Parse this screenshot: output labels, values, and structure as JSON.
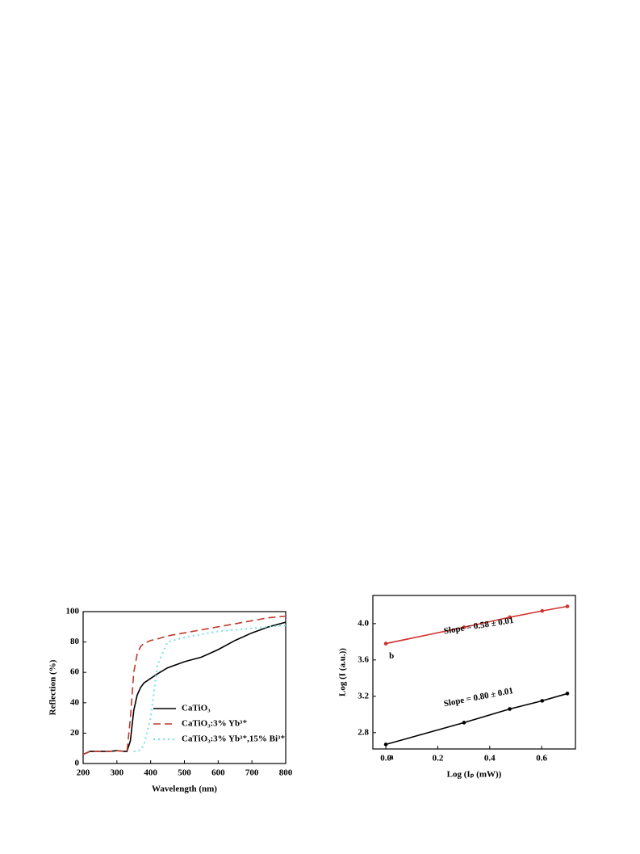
{
  "chart_data": [
    {
      "type": "line",
      "x_label": "Wavelength (nm)",
      "y_label": "Reflection (%)",
      "x": [
        200,
        220,
        250,
        280,
        300,
        320,
        330,
        340,
        350,
        360,
        370,
        380,
        400,
        420,
        450,
        500,
        550,
        600,
        650,
        700,
        750,
        800
      ],
      "series": [
        {
          "name": "CaTiO₃",
          "color": "#000000",
          "dash": "solid",
          "values": [
            6,
            8,
            8,
            8,
            8.5,
            8,
            8,
            15,
            35,
            45,
            50,
            53,
            56,
            59,
            63,
            67,
            70,
            75,
            81,
            86,
            90,
            93
          ]
        },
        {
          "name": "CaTiO₃:3% Yb³⁺",
          "color": "#c0392b",
          "dash": "dashed",
          "values": [
            6,
            8,
            8,
            8,
            8.5,
            8,
            8,
            30,
            60,
            72,
            77,
            79,
            81,
            82,
            84,
            86,
            88,
            90,
            92,
            94,
            96,
            97
          ]
        },
        {
          "name": "CaTiO₃:3% Yb³⁺,15% Bi³⁺",
          "color": "#7fe3e3",
          "dash": "dotted",
          "values": [
            null,
            null,
            null,
            null,
            null,
            null,
            null,
            null,
            8,
            8,
            9,
            12,
            30,
            65,
            80,
            83,
            85,
            87,
            88,
            89,
            90,
            91
          ]
        }
      ],
      "xlim": [
        200,
        800
      ],
      "xticks": [
        200,
        300,
        400,
        500,
        600,
        700,
        800
      ],
      "ylim": [
        0,
        100
      ],
      "yticks": [
        0,
        20,
        40,
        60,
        80,
        100
      ],
      "legend": "lower-right"
    },
    {
      "type": "line",
      "markers": true,
      "x_label": "Log (Iₚ (mW))",
      "y_label": "Log (I (a.u.))",
      "x": [
        0,
        0.301,
        0.477,
        0.602,
        0.699
      ],
      "series": [
        {
          "name": "b",
          "color": "#d0312d",
          "values": [
            3.78,
            3.96,
            4.07,
            4.14,
            4.19
          ]
        },
        {
          "name": "a",
          "color": "#000000",
          "values": [
            2.67,
            2.91,
            3.06,
            3.15,
            3.23
          ]
        }
      ],
      "annotations": [
        "Slope = 0.58 ± 0.01",
        "Slope = 0.80 ± 0.01"
      ],
      "xlim": [
        -0.05,
        0.73
      ],
      "xticks": [
        {
          "value": 0,
          "label": "0.0"
        },
        0.2,
        0.4,
        0.6
      ],
      "ylim": [
        2.62,
        4.31
      ],
      "yticks": [
        2.8,
        3.2,
        3.6,
        {
          "value": 4,
          "label": "4.0"
        }
      ]
    }
  ]
}
